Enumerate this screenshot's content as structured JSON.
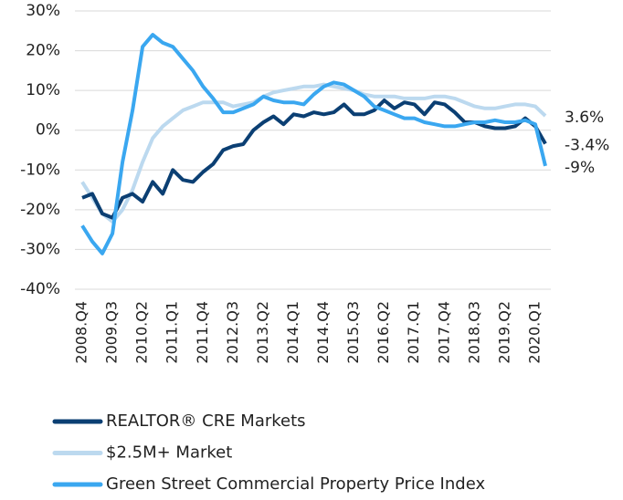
{
  "chart_data": {
    "type": "line",
    "categories": [
      "2008.Q4",
      null,
      null,
      "2009.Q3",
      null,
      null,
      "2010.Q2",
      null,
      null,
      "2011.Q1",
      null,
      null,
      "2011.Q4",
      null,
      null,
      "2012.Q3",
      null,
      null,
      "2013.Q2",
      null,
      null,
      "2014.Q1",
      null,
      null,
      "2014.Q4",
      null,
      null,
      "2015.Q3",
      null,
      null,
      "2016.Q2",
      null,
      null,
      "2017.Q1",
      null,
      null,
      "2017.Q4",
      null,
      null,
      "2018.Q3",
      null,
      null,
      "2019.Q2",
      null,
      null,
      "2020.Q1",
      null
    ],
    "series": [
      {
        "name": "REALTOR® CRE Markets",
        "color": "#0b3f73",
        "values": [
          -17,
          -16,
          -21,
          -22,
          -17,
          -16,
          -18,
          -13,
          -16,
          -10,
          -12.5,
          -13,
          -10.5,
          -8.5,
          -5,
          -4,
          -3.5,
          0,
          2,
          3.5,
          1.5,
          4,
          3.5,
          4.5,
          4,
          4.5,
          6.5,
          4,
          4,
          5,
          7.5,
          5.5,
          7,
          6.5,
          4,
          7,
          6.5,
          4.5,
          2,
          2,
          1,
          0.5,
          0.5,
          1,
          3,
          1,
          -3.4
        ],
        "value_labels": [
          null,
          null,
          null,
          null,
          null,
          null,
          null,
          null,
          null,
          null,
          null,
          null,
          null,
          null,
          null,
          null,
          null,
          null,
          null,
          null,
          null,
          null,
          null,
          null,
          null,
          null,
          null,
          null,
          null,
          null,
          null,
          null,
          null,
          null,
          null,
          null,
          null,
          null,
          null,
          null,
          null,
          null,
          null,
          null,
          null,
          null,
          "-3.4%"
        ]
      },
      {
        "name": "$2.5M+ Market",
        "color": "#bcd9ef",
        "values": [
          -13,
          -17,
          -21,
          -23,
          -20,
          -15,
          -8,
          -2,
          1,
          3,
          5,
          6,
          7,
          7,
          7,
          6,
          6.5,
          7,
          8.5,
          9.5,
          10,
          10.5,
          11,
          11,
          11.5,
          11,
          10.5,
          10,
          9,
          8.5,
          8.5,
          8.5,
          8,
          8,
          8,
          8.5,
          8.5,
          8,
          7,
          6,
          5.5,
          5.5,
          6,
          6.5,
          6.5,
          6,
          3.6
        ],
        "value_labels": [
          null,
          null,
          null,
          null,
          null,
          null,
          null,
          null,
          null,
          null,
          null,
          null,
          null,
          null,
          null,
          null,
          null,
          null,
          null,
          null,
          null,
          null,
          null,
          null,
          null,
          null,
          null,
          null,
          null,
          null,
          null,
          null,
          null,
          null,
          null,
          null,
          null,
          null,
          null,
          null,
          null,
          null,
          null,
          null,
          null,
          null,
          "3.6%"
        ]
      },
      {
        "name": "Green Street Commercial Property Price Index",
        "color": "#3aa7f0",
        "values": [
          -24,
          -28,
          -31,
          -26,
          -8,
          5,
          21,
          24,
          22,
          21,
          18,
          15,
          11,
          8,
          4.5,
          4.5,
          5.5,
          6.5,
          8.5,
          7.5,
          7,
          7,
          6.5,
          9,
          11,
          12,
          11.5,
          10,
          8.5,
          6,
          5,
          4,
          3,
          3,
          2,
          1.5,
          1,
          1,
          1.5,
          2,
          2,
          2.5,
          2,
          2,
          2.5,
          1.5,
          -9
        ],
        "value_labels": [
          null,
          null,
          null,
          null,
          null,
          null,
          null,
          null,
          null,
          null,
          null,
          null,
          null,
          null,
          null,
          null,
          null,
          null,
          null,
          null,
          null,
          null,
          null,
          null,
          null,
          null,
          null,
          null,
          null,
          null,
          null,
          null,
          null,
          null,
          null,
          null,
          null,
          null,
          null,
          null,
          null,
          null,
          null,
          null,
          null,
          null,
          "-9%"
        ]
      }
    ],
    "ylim": [
      -40,
      30
    ],
    "yticks": [
      {
        "value": -40,
        "label": "-40%"
      },
      {
        "value": -30,
        "label": "-30%"
      },
      {
        "value": -20,
        "label": "-20%"
      },
      {
        "value": -10,
        "label": "-10%"
      },
      {
        "value": 0,
        "label": "0%"
      },
      {
        "value": 10,
        "label": "10%"
      },
      {
        "value": 20,
        "label": "20%"
      },
      {
        "value": 30,
        "label": "30%"
      }
    ],
    "grid": true
  }
}
